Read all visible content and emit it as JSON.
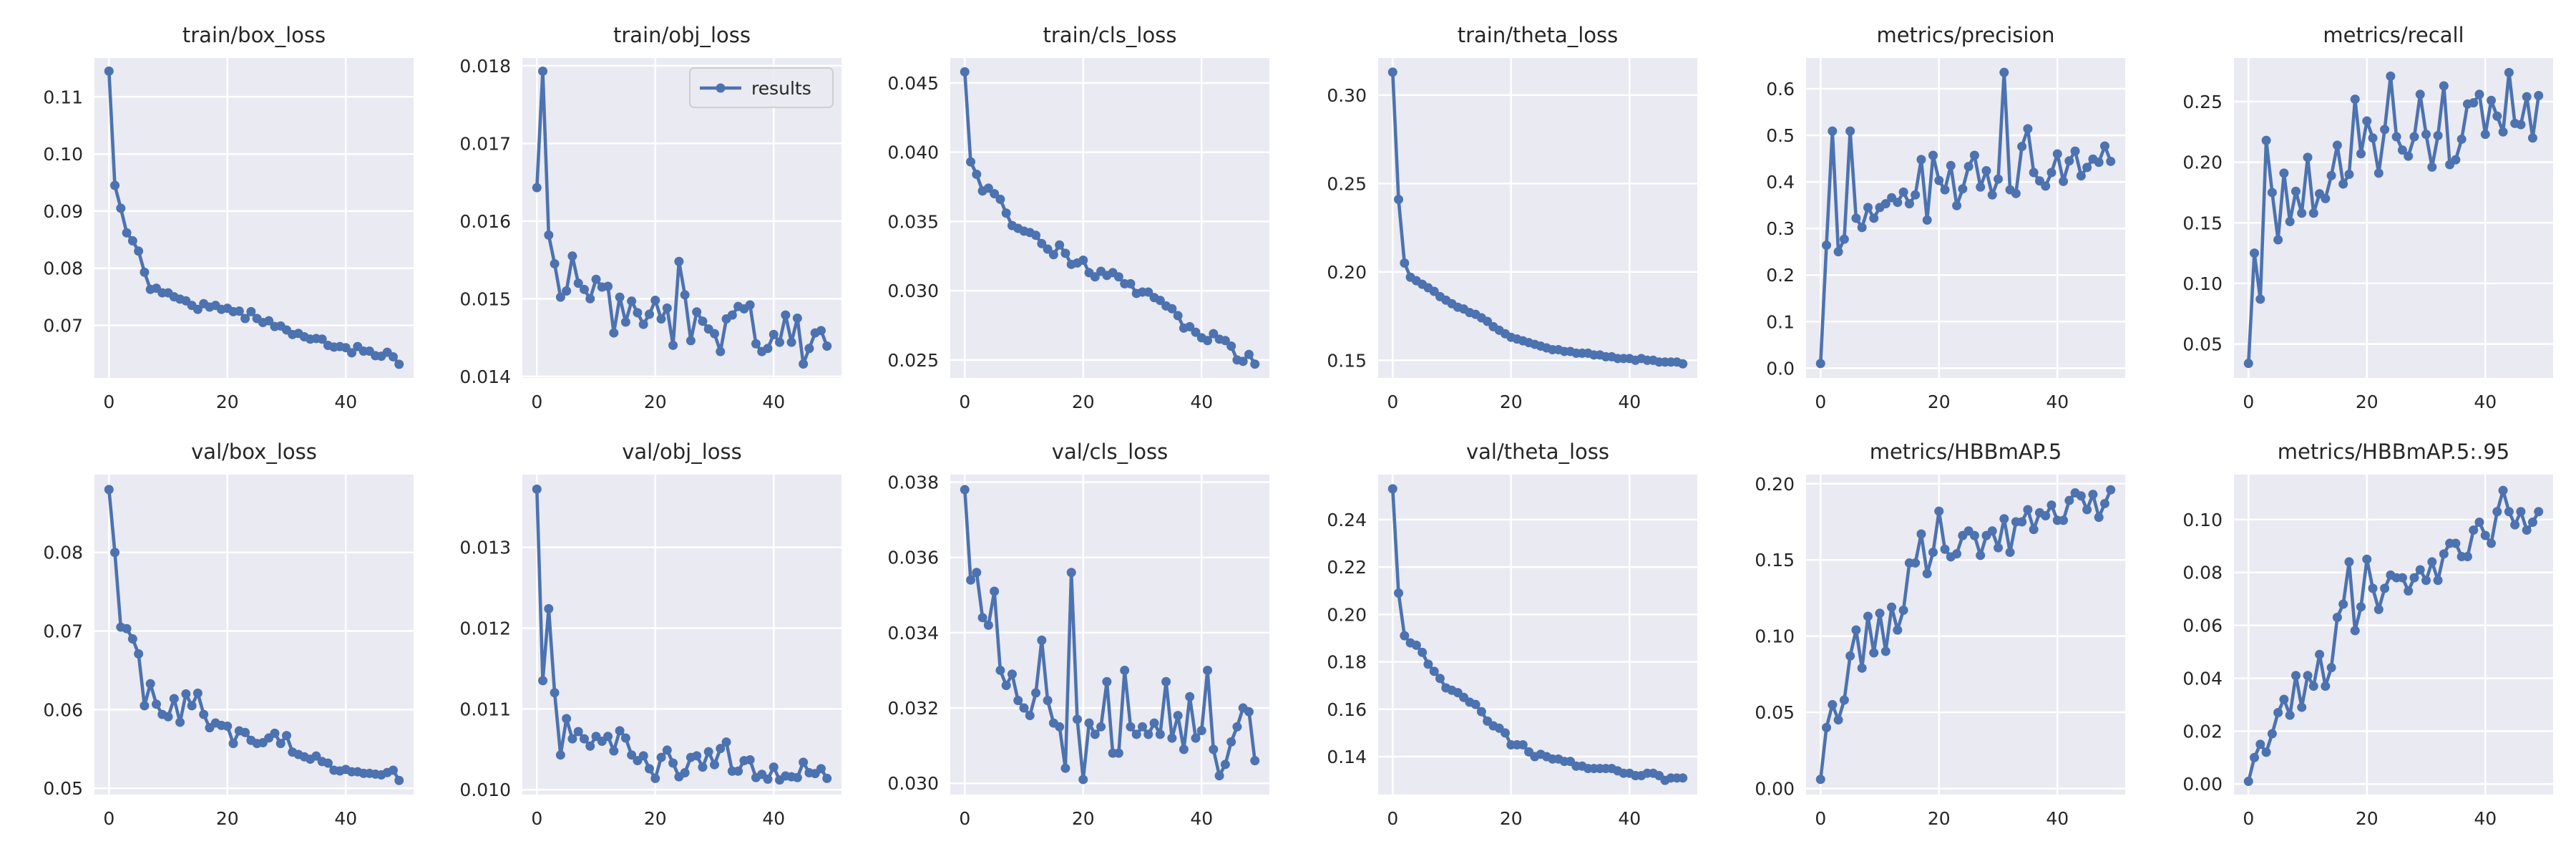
{
  "colors": {
    "axes_bg": "#eaeaf2",
    "grid": "#ffffff",
    "series": "#4c72b0",
    "text": "#262626"
  },
  "legend": {
    "label": "results",
    "placement": "upper right of train/obj_loss panel"
  },
  "chart_data": [
    {
      "type": "line",
      "title": "train/box_loss",
      "x_ticks": [
        0,
        20,
        40
      ],
      "xlim": [
        -2.45,
        51.45
      ],
      "ylim": [
        0.0608,
        0.1168
      ],
      "y_ticks": [
        0.07,
        0.08,
        0.09,
        0.1,
        0.11
      ],
      "y_tick_labels": [
        "0.07",
        "0.08",
        "0.09",
        "0.10",
        "0.11"
      ],
      "grid": true,
      "values": [
        0.1145,
        0.0945,
        0.0905,
        0.0862,
        0.0848,
        0.083,
        0.0793,
        0.0763,
        0.0765,
        0.0757,
        0.0757,
        0.075,
        0.0746,
        0.0743,
        0.0735,
        0.0728,
        0.0738,
        0.0732,
        0.0735,
        0.0728,
        0.073,
        0.0724,
        0.0725,
        0.0712,
        0.0724,
        0.0712,
        0.0705,
        0.0708,
        0.0698,
        0.0699,
        0.0692,
        0.0684,
        0.0686,
        0.068,
        0.0676,
        0.0677,
        0.0676,
        0.0665,
        0.0662,
        0.0663,
        0.0661,
        0.0652,
        0.0663,
        0.0655,
        0.0655,
        0.0647,
        0.0646,
        0.0653,
        0.0645,
        0.0632
      ]
    },
    {
      "type": "line",
      "title": "train/obj_loss",
      "legend": true,
      "x_ticks": [
        0,
        20,
        40
      ],
      "xlim": [
        -2.45,
        51.45
      ],
      "ylim": [
        0.01398,
        0.0181
      ],
      "y_ticks": [
        0.014,
        0.015,
        0.016,
        0.017,
        0.018
      ],
      "y_tick_labels": [
        "0.014",
        "0.015",
        "0.016",
        "0.017",
        "0.018"
      ],
      "grid": true,
      "values": [
        0.01643,
        0.01793,
        0.01582,
        0.01545,
        0.01502,
        0.0151,
        0.01555,
        0.0152,
        0.01512,
        0.015,
        0.01525,
        0.01515,
        0.01516,
        0.01456,
        0.01502,
        0.0147,
        0.01497,
        0.01482,
        0.01467,
        0.0148,
        0.01498,
        0.01474,
        0.01488,
        0.0144,
        0.01548,
        0.01505,
        0.01446,
        0.01483,
        0.01471,
        0.01461,
        0.01455,
        0.01432,
        0.01474,
        0.01479,
        0.0149,
        0.01487,
        0.01492,
        0.01442,
        0.01432,
        0.01436,
        0.01454,
        0.01444,
        0.01479,
        0.01444,
        0.01475,
        0.01416,
        0.01436,
        0.01456,
        0.01459,
        0.01439
      ]
    },
    {
      "type": "line",
      "title": "train/cls_loss",
      "x_ticks": [
        0,
        20,
        40
      ],
      "xlim": [
        -2.45,
        51.45
      ],
      "ylim": [
        0.0237,
        0.0468
      ],
      "y_ticks": [
        0.025,
        0.03,
        0.035,
        0.04,
        0.045
      ],
      "y_tick_labels": [
        "0.025",
        "0.030",
        "0.035",
        "0.040",
        "0.045"
      ],
      "grid": true,
      "values": [
        0.0458,
        0.0393,
        0.0384,
        0.0372,
        0.0374,
        0.037,
        0.0366,
        0.0356,
        0.0347,
        0.0345,
        0.0343,
        0.0342,
        0.034,
        0.0334,
        0.033,
        0.0326,
        0.0333,
        0.0327,
        0.0319,
        0.032,
        0.0322,
        0.0313,
        0.031,
        0.0314,
        0.0311,
        0.0313,
        0.031,
        0.0305,
        0.0305,
        0.0298,
        0.0299,
        0.0299,
        0.0295,
        0.0293,
        0.0289,
        0.0287,
        0.0282,
        0.0273,
        0.0274,
        0.027,
        0.0266,
        0.0264,
        0.0269,
        0.0265,
        0.0264,
        0.026,
        0.025,
        0.0249,
        0.0254,
        0.0247
      ]
    },
    {
      "type": "line",
      "title": "train/theta_loss",
      "x_ticks": [
        0,
        20,
        40
      ],
      "xlim": [
        -2.45,
        51.45
      ],
      "ylim": [
        0.14,
        0.321
      ],
      "y_ticks": [
        0.15,
        0.2,
        0.25,
        0.3
      ],
      "y_tick_labels": [
        "0.15",
        "0.20",
        "0.25",
        "0.30"
      ],
      "grid": true,
      "values": [
        0.313,
        0.241,
        0.205,
        0.197,
        0.195,
        0.193,
        0.191,
        0.189,
        0.186,
        0.184,
        0.182,
        0.18,
        0.179,
        0.177,
        0.176,
        0.174,
        0.172,
        0.169,
        0.167,
        0.165,
        0.163,
        0.162,
        0.161,
        0.16,
        0.159,
        0.158,
        0.157,
        0.156,
        0.156,
        0.155,
        0.155,
        0.154,
        0.154,
        0.154,
        0.153,
        0.153,
        0.152,
        0.152,
        0.151,
        0.151,
        0.151,
        0.15,
        0.151,
        0.15,
        0.15,
        0.149,
        0.149,
        0.149,
        0.149,
        0.148
      ]
    },
    {
      "type": "line",
      "title": "metrics/precision",
      "x_ticks": [
        0,
        20,
        40
      ],
      "xlim": [
        -2.45,
        51.45
      ],
      "ylim": [
        -0.021,
        0.666
      ],
      "y_ticks": [
        0,
        0.1,
        0.2,
        0.3,
        0.4,
        0.5,
        0.6
      ],
      "y_tick_labels": [
        "0.0",
        "0.1",
        "0.2",
        "0.3",
        "0.4",
        "0.5",
        "0.6"
      ],
      "grid": true,
      "values": [
        0.01,
        0.264,
        0.509,
        0.25,
        0.277,
        0.509,
        0.322,
        0.302,
        0.345,
        0.322,
        0.345,
        0.353,
        0.366,
        0.356,
        0.378,
        0.353,
        0.372,
        0.448,
        0.318,
        0.457,
        0.403,
        0.383,
        0.435,
        0.349,
        0.385,
        0.433,
        0.457,
        0.389,
        0.424,
        0.372,
        0.406,
        0.635,
        0.383,
        0.375,
        0.476,
        0.514,
        0.42,
        0.402,
        0.391,
        0.42,
        0.46,
        0.401,
        0.445,
        0.466,
        0.413,
        0.431,
        0.449,
        0.442,
        0.477,
        0.444
      ]
    },
    {
      "type": "line",
      "title": "metrics/recall",
      "x_ticks": [
        0,
        20,
        40
      ],
      "xlim": [
        -2.45,
        51.45
      ],
      "ylim": [
        0.022,
        0.286
      ],
      "y_ticks": [
        0.05,
        0.1,
        0.15,
        0.2,
        0.25
      ],
      "y_tick_labels": [
        "0.05",
        "0.10",
        "0.15",
        "0.20",
        "0.25"
      ],
      "grid": true,
      "values": [
        0.034,
        0.125,
        0.087,
        0.218,
        0.175,
        0.136,
        0.191,
        0.151,
        0.176,
        0.158,
        0.204,
        0.158,
        0.174,
        0.17,
        0.189,
        0.214,
        0.182,
        0.19,
        0.252,
        0.207,
        0.234,
        0.22,
        0.191,
        0.227,
        0.271,
        0.221,
        0.21,
        0.205,
        0.221,
        0.256,
        0.223,
        0.196,
        0.222,
        0.263,
        0.198,
        0.202,
        0.219,
        0.248,
        0.249,
        0.256,
        0.223,
        0.251,
        0.238,
        0.225,
        0.274,
        0.232,
        0.231,
        0.254,
        0.22,
        0.255
      ]
    },
    {
      "type": "line",
      "title": "val/box_loss",
      "x_ticks": [
        0,
        20,
        40
      ],
      "xlim": [
        -2.45,
        51.45
      ],
      "ylim": [
        0.0492,
        0.0899
      ],
      "y_ticks": [
        0.05,
        0.06,
        0.07,
        0.08
      ],
      "y_tick_labels": [
        "0.05",
        "0.06",
        "0.07",
        "0.08"
      ],
      "grid": true,
      "values": [
        0.088,
        0.08,
        0.0705,
        0.0703,
        0.069,
        0.0671,
        0.0605,
        0.0633,
        0.0607,
        0.0594,
        0.0591,
        0.0614,
        0.0584,
        0.062,
        0.0605,
        0.0621,
        0.0594,
        0.0577,
        0.0583,
        0.058,
        0.0579,
        0.0557,
        0.0573,
        0.0571,
        0.0561,
        0.0557,
        0.0558,
        0.0564,
        0.057,
        0.0557,
        0.0567,
        0.0546,
        0.0543,
        0.054,
        0.0537,
        0.0541,
        0.0534,
        0.0532,
        0.0523,
        0.0522,
        0.0524,
        0.0521,
        0.0521,
        0.0519,
        0.0519,
        0.0518,
        0.0517,
        0.052,
        0.0523,
        0.051
      ]
    },
    {
      "type": "line",
      "title": "val/obj_loss",
      "x_ticks": [
        0,
        20,
        40
      ],
      "xlim": [
        -2.45,
        51.45
      ],
      "ylim": [
        0.00994,
        0.0139
      ],
      "y_ticks": [
        0.01,
        0.011,
        0.012,
        0.013
      ],
      "y_tick_labels": [
        "0.010",
        "0.011",
        "0.012",
        "0.013"
      ],
      "grid": true,
      "values": [
        0.01372,
        0.01135,
        0.01224,
        0.0112,
        0.01043,
        0.01088,
        0.01063,
        0.01072,
        0.01063,
        0.01054,
        0.01066,
        0.0106,
        0.01066,
        0.01048,
        0.01073,
        0.01064,
        0.01043,
        0.01036,
        0.01042,
        0.01026,
        0.01014,
        0.0104,
        0.01049,
        0.01033,
        0.01016,
        0.01021,
        0.0104,
        0.01042,
        0.01028,
        0.01047,
        0.01031,
        0.01051,
        0.01059,
        0.01023,
        0.01023,
        0.01036,
        0.01037,
        0.01015,
        0.01019,
        0.01013,
        0.01028,
        0.01012,
        0.01017,
        0.01016,
        0.01015,
        0.01034,
        0.01021,
        0.0102,
        0.01026,
        0.01014
      ]
    },
    {
      "type": "line",
      "title": "val/cls_loss",
      "x_ticks": [
        0,
        20,
        40
      ],
      "xlim": [
        -2.45,
        51.45
      ],
      "ylim": [
        0.0297,
        0.0382
      ],
      "y_ticks": [
        0.03,
        0.032,
        0.034,
        0.036,
        0.038
      ],
      "y_tick_labels": [
        "0.030",
        "0.032",
        "0.034",
        "0.036",
        "0.038"
      ],
      "grid": true,
      "values": [
        0.0378,
        0.0354,
        0.0356,
        0.0344,
        0.0342,
        0.0351,
        0.033,
        0.0326,
        0.0329,
        0.0322,
        0.032,
        0.0318,
        0.0324,
        0.0338,
        0.0322,
        0.0316,
        0.0315,
        0.0304,
        0.0356,
        0.0317,
        0.0301,
        0.0316,
        0.0313,
        0.0315,
        0.0327,
        0.0308,
        0.0308,
        0.033,
        0.0315,
        0.0313,
        0.0315,
        0.0313,
        0.0316,
        0.0313,
        0.0327,
        0.0312,
        0.0318,
        0.0309,
        0.0323,
        0.0312,
        0.0314,
        0.033,
        0.0309,
        0.0302,
        0.0305,
        0.0311,
        0.0315,
        0.032,
        0.0319,
        0.0306
      ]
    },
    {
      "type": "line",
      "title": "val/theta_loss",
      "x_ticks": [
        0,
        20,
        40
      ],
      "xlim": [
        -2.45,
        51.45
      ],
      "ylim": [
        0.124,
        0.259
      ],
      "y_ticks": [
        0.14,
        0.16,
        0.18,
        0.2,
        0.22,
        0.24
      ],
      "y_tick_labels": [
        "0.14",
        "0.16",
        "0.18",
        "0.20",
        "0.22",
        "0.24"
      ],
      "grid": true,
      "values": [
        0.253,
        0.209,
        0.191,
        0.188,
        0.187,
        0.184,
        0.179,
        0.176,
        0.173,
        0.169,
        0.168,
        0.167,
        0.165,
        0.163,
        0.162,
        0.159,
        0.155,
        0.153,
        0.152,
        0.15,
        0.145,
        0.145,
        0.145,
        0.142,
        0.14,
        0.141,
        0.14,
        0.139,
        0.139,
        0.138,
        0.138,
        0.136,
        0.136,
        0.135,
        0.135,
        0.135,
        0.135,
        0.135,
        0.134,
        0.133,
        0.133,
        0.132,
        0.132,
        0.133,
        0.133,
        0.132,
        0.13,
        0.131,
        0.131,
        0.131
      ]
    },
    {
      "type": "line",
      "title": "metrics/HBBmAP.5",
      "x_ticks": [
        0,
        20,
        40
      ],
      "xlim": [
        -2.45,
        51.45
      ],
      "ylim": [
        -0.004,
        0.206
      ],
      "y_ticks": [
        0,
        0.05,
        0.1,
        0.15,
        0.2
      ],
      "y_tick_labels": [
        "0.00",
        "0.05",
        "0.10",
        "0.15",
        "0.20"
      ],
      "grid": true,
      "values": [
        0.006,
        0.04,
        0.055,
        0.045,
        0.058,
        0.087,
        0.104,
        0.079,
        0.113,
        0.089,
        0.115,
        0.09,
        0.119,
        0.104,
        0.117,
        0.148,
        0.148,
        0.167,
        0.141,
        0.155,
        0.182,
        0.157,
        0.152,
        0.154,
        0.166,
        0.169,
        0.166,
        0.153,
        0.166,
        0.169,
        0.158,
        0.177,
        0.155,
        0.175,
        0.175,
        0.183,
        0.17,
        0.181,
        0.179,
        0.186,
        0.176,
        0.176,
        0.189,
        0.194,
        0.192,
        0.183,
        0.193,
        0.178,
        0.187,
        0.196
      ]
    },
    {
      "type": "line",
      "title": "metrics/HBBmAP.5:.95",
      "x_ticks": [
        0,
        20,
        40
      ],
      "xlim": [
        -2.45,
        51.45
      ],
      "ylim": [
        -0.004,
        0.117
      ],
      "y_ticks": [
        0,
        0.02,
        0.04,
        0.06,
        0.08,
        0.1
      ],
      "y_tick_labels": [
        "0.00",
        "0.02",
        "0.04",
        "0.06",
        "0.08",
        "0.10"
      ],
      "grid": true,
      "values": [
        0.001,
        0.01,
        0.015,
        0.012,
        0.019,
        0.027,
        0.032,
        0.026,
        0.041,
        0.029,
        0.041,
        0.037,
        0.049,
        0.037,
        0.044,
        0.063,
        0.068,
        0.084,
        0.058,
        0.067,
        0.085,
        0.074,
        0.066,
        0.074,
        0.079,
        0.078,
        0.078,
        0.073,
        0.078,
        0.081,
        0.077,
        0.084,
        0.077,
        0.087,
        0.091,
        0.091,
        0.086,
        0.086,
        0.096,
        0.099,
        0.094,
        0.091,
        0.103,
        0.111,
        0.103,
        0.098,
        0.103,
        0.096,
        0.099,
        0.103
      ]
    }
  ]
}
